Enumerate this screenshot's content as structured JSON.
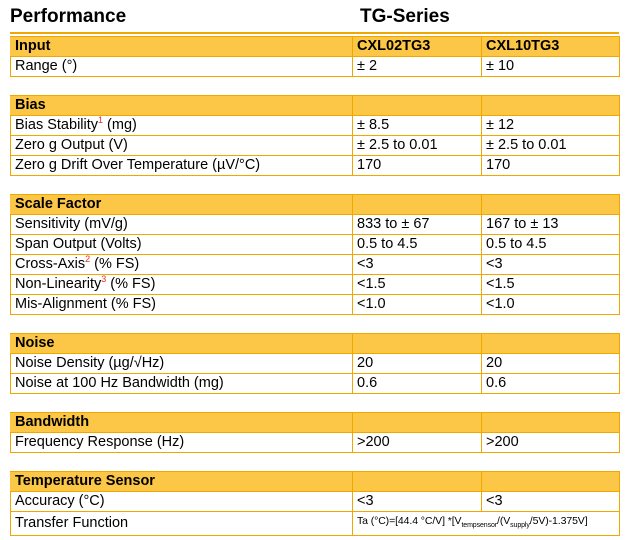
{
  "header": {
    "title": "Performance",
    "series": "TG-Series"
  },
  "sections": [
    {
      "heading": "Input",
      "col2": "CXL02TG3",
      "col3": "CXL10TG3",
      "rows": [
        {
          "label": "Range (°)",
          "v1": "± 2",
          "v2": "± 10"
        }
      ]
    },
    {
      "heading": "Bias",
      "rows": [
        {
          "label": "Bias Stability",
          "sup": "1",
          "unit": " (mg)",
          "v1": "± 8.5",
          "v2": "± 12"
        },
        {
          "label": "Zero g Output (V)",
          "v1": "± 2.5 to 0.01",
          "v2": "± 2.5 to 0.01"
        },
        {
          "label": "Zero g Drift Over Temperature (µV/°C)",
          "v1": "170",
          "v2": "170"
        }
      ]
    },
    {
      "heading": "Scale Factor",
      "rows": [
        {
          "label": "Sensitivity (mV/g)",
          "v1": "833 to ± 67",
          "v2": "167 to ± 13"
        },
        {
          "label": "Span Output (Volts)",
          "v1": "0.5 to 4.5",
          "v2": "0.5 to 4.5"
        },
        {
          "label": "Cross-Axis",
          "sup": "2",
          "unit": " (% FS)",
          "v1": "<3",
          "v2": "<3"
        },
        {
          "label": "Non-Linearity",
          "sup": "3",
          "unit": " (% FS)",
          "v1": "<1.5",
          "v2": "<1.5"
        },
        {
          "label": "Mis-Alignment (% FS)",
          "v1": "<1.0",
          "v2": "<1.0"
        }
      ]
    },
    {
      "heading": "Noise",
      "rows": [
        {
          "label": "Noise Density (µg/√Hz)",
          "v1": "20",
          "v2": "20"
        },
        {
          "label": "Noise at 100 Hz Bandwidth (mg)",
          "v1": "0.6",
          "v2": "0.6"
        }
      ]
    },
    {
      "heading": "Bandwidth",
      "rows": [
        {
          "label": "Frequency Response (Hz)",
          "v1": ">200",
          "v2": ">200"
        }
      ]
    },
    {
      "heading": "Temperature Sensor",
      "rows": [
        {
          "label": "Accuracy (°C)",
          "v1": "<3",
          "v2": "<3"
        }
      ],
      "transfer": {
        "label": "Transfer Function",
        "f1": "Ta (°C)=[44.4 °C/V] *[V",
        "s1": "tempsensor",
        "f2": "/(V",
        "s2": "supply",
        "f3": "/5V)-1.375V]"
      }
    }
  ],
  "colors": {
    "header_fill": "#fcc647",
    "border": "#f0a800",
    "footnote_mark": "#e03020"
  }
}
